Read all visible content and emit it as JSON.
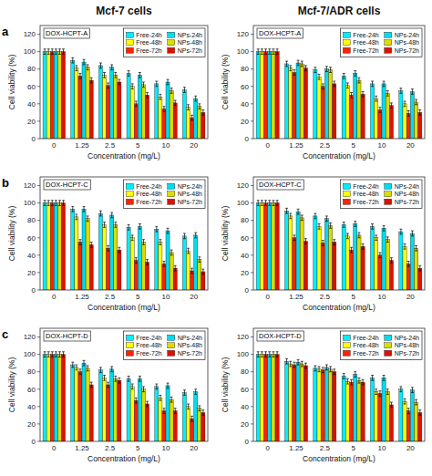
{
  "chart_data": [
    {
      "type": "bar",
      "title": "Mcf-7 cells",
      "annotations": [
        "a",
        "DOX-HCPT-A"
      ],
      "x_label": "Concentration (mg/L)",
      "y_label": "Cell viability (%)",
      "categories": [
        "0",
        "1.25",
        "2.5",
        "5",
        "10",
        "20"
      ],
      "ylim": [
        0,
        130
      ],
      "yticks": [
        0,
        20,
        40,
        60,
        80,
        100,
        120
      ],
      "grid": false,
      "legend": "upper right",
      "series": [
        {
          "name": "Free-24h",
          "color": "#00EEFF",
          "values": [
            100,
            90,
            84,
            75,
            63,
            56
          ],
          "error": [
            3,
            3,
            3,
            3,
            3,
            3
          ]
        },
        {
          "name": "Free-48h",
          "color": "#FFFF00",
          "values": [
            100,
            81,
            73,
            60,
            48,
            36
          ],
          "error": [
            3,
            3,
            3,
            3,
            3,
            3
          ]
        },
        {
          "name": "Free-72h",
          "color": "#FF2200",
          "values": [
            100,
            72,
            61,
            40,
            34,
            24
          ],
          "error": [
            3,
            3,
            3,
            3,
            3,
            3
          ]
        },
        {
          "name": "NPs-24h",
          "color": "#00DDEE",
          "values": [
            100,
            88,
            82,
            73,
            65,
            46
          ],
          "error": [
            3,
            3,
            3,
            3,
            3,
            3
          ]
        },
        {
          "name": "NPs-48h",
          "color": "#DDDD00",
          "values": [
            100,
            82,
            73,
            62,
            55,
            37
          ],
          "error": [
            3,
            3,
            3,
            3,
            3,
            3
          ]
        },
        {
          "name": "NPs-72h",
          "color": "#DD1100",
          "values": [
            100,
            67,
            65,
            50,
            41,
            30
          ],
          "error": [
            3,
            3,
            3,
            3,
            3,
            3
          ]
        }
      ]
    },
    {
      "type": "bar",
      "title": "Mcf-7/ADR cells",
      "annotations": [
        "DOX-HCPT-A"
      ],
      "x_label": "Concentration (mg/L)",
      "y_label": "Cell viability (%)",
      "categories": [
        "0",
        "1.25",
        "2.5",
        "5",
        "10",
        "20"
      ],
      "ylim": [
        0,
        130
      ],
      "yticks": [
        0,
        20,
        40,
        60,
        80,
        100,
        120
      ],
      "grid": false,
      "legend": "upper right",
      "series": [
        {
          "name": "Free-24h",
          "color": "#00EEFF",
          "values": [
            100,
            86,
            79,
            72,
            63,
            55
          ],
          "error": [
            3,
            3,
            3,
            3,
            3,
            3
          ]
        },
        {
          "name": "Free-48h",
          "color": "#FFFF00",
          "values": [
            100,
            81,
            71,
            61,
            46,
            40
          ],
          "error": [
            3,
            3,
            3,
            3,
            3,
            3
          ]
        },
        {
          "name": "Free-72h",
          "color": "#FF2200",
          "values": [
            100,
            76,
            60,
            50,
            33,
            29
          ],
          "error": [
            3,
            3,
            3,
            3,
            3,
            3
          ]
        },
        {
          "name": "NPs-24h",
          "color": "#00DDEE",
          "values": [
            100,
            87,
            80,
            75,
            63,
            54
          ],
          "error": [
            3,
            3,
            3,
            3,
            3,
            3
          ]
        },
        {
          "name": "NPs-48h",
          "color": "#DDDD00",
          "values": [
            100,
            86,
            79,
            67,
            52,
            42
          ],
          "error": [
            3,
            3,
            3,
            3,
            3,
            3
          ]
        },
        {
          "name": "NPs-72h",
          "color": "#DD1100",
          "values": [
            100,
            81,
            63,
            51,
            38,
            30
          ],
          "error": [
            3,
            3,
            3,
            3,
            3,
            3
          ]
        }
      ]
    },
    {
      "type": "bar",
      "annotations": [
        "b",
        "DOX-HCPT-C"
      ],
      "x_label": "Concentration (mg/L)",
      "y_label": "Cell viability (%)",
      "categories": [
        "0",
        "1.25",
        "2.5",
        "5",
        "10",
        "20"
      ],
      "ylim": [
        0,
        130
      ],
      "yticks": [
        0,
        20,
        40,
        60,
        80,
        100,
        120
      ],
      "grid": false,
      "legend": "upper right",
      "series": [
        {
          "name": "Free-24h",
          "color": "#00EEFF",
          "values": [
            100,
            93,
            88,
            72,
            70,
            62
          ],
          "error": [
            3,
            3,
            3,
            3,
            3,
            3
          ]
        },
        {
          "name": "Free-48h",
          "color": "#FFFF00",
          "values": [
            100,
            84,
            75,
            60,
            55,
            45
          ],
          "error": [
            3,
            3,
            3,
            3,
            3,
            3
          ]
        },
        {
          "name": "Free-72h",
          "color": "#FF2200",
          "values": [
            100,
            55,
            48,
            34,
            30,
            22
          ],
          "error": [
            3,
            3,
            3,
            3,
            3,
            3
          ]
        },
        {
          "name": "NPs-24h",
          "color": "#00DDEE",
          "values": [
            100,
            93,
            86,
            73,
            68,
            63
          ],
          "error": [
            3,
            3,
            3,
            3,
            3,
            3
          ]
        },
        {
          "name": "NPs-48h",
          "color": "#DDDD00",
          "values": [
            100,
            82,
            75,
            55,
            43,
            35
          ],
          "error": [
            3,
            3,
            3,
            3,
            3,
            3
          ]
        },
        {
          "name": "NPs-72h",
          "color": "#DD1100",
          "values": [
            100,
            52,
            46,
            32,
            25,
            21
          ],
          "error": [
            3,
            3,
            3,
            3,
            3,
            3
          ]
        }
      ]
    },
    {
      "type": "bar",
      "annotations": [
        "DOX-HCPT-C"
      ],
      "x_label": "Concentration (mg/L)",
      "y_label": "Cell viability (%)",
      "categories": [
        "0",
        "1.25",
        "2.5",
        "5",
        "10",
        "20"
      ],
      "ylim": [
        0,
        130
      ],
      "yticks": [
        0,
        20,
        40,
        60,
        80,
        100,
        120
      ],
      "grid": false,
      "legend": "upper right",
      "series": [
        {
          "name": "Free-24h",
          "color": "#00EEFF",
          "values": [
            100,
            91,
            85,
            75,
            73,
            67
          ],
          "error": [
            3,
            3,
            3,
            3,
            3,
            3
          ]
        },
        {
          "name": "Free-48h",
          "color": "#FFFF00",
          "values": [
            100,
            85,
            73,
            62,
            60,
            50
          ],
          "error": [
            3,
            3,
            3,
            3,
            3,
            3
          ]
        },
        {
          "name": "Free-72h",
          "color": "#FF2200",
          "values": [
            100,
            60,
            54,
            46,
            40,
            30
          ],
          "error": [
            3,
            3,
            3,
            3,
            3,
            3
          ]
        },
        {
          "name": "NPs-24h",
          "color": "#00DDEE",
          "values": [
            100,
            90,
            82,
            76,
            71,
            65
          ],
          "error": [
            3,
            3,
            3,
            3,
            3,
            3
          ]
        },
        {
          "name": "NPs-48h",
          "color": "#DDDD00",
          "values": [
            100,
            83,
            74,
            63,
            58,
            48
          ],
          "error": [
            3,
            3,
            3,
            3,
            3,
            3
          ]
        },
        {
          "name": "NPs-72h",
          "color": "#DD1100",
          "values": [
            100,
            56,
            55,
            50,
            34,
            25
          ],
          "error": [
            3,
            3,
            3,
            3,
            3,
            3
          ]
        }
      ]
    },
    {
      "type": "bar",
      "annotations": [
        "c",
        "DOX-HCPT-D"
      ],
      "x_label": "Concentration (mg/L)",
      "y_label": "Cell viability (%)",
      "categories": [
        "0",
        "1.25",
        "2.5",
        "5",
        "10",
        "20"
      ],
      "ylim": [
        0,
        130
      ],
      "yticks": [
        0,
        20,
        40,
        60,
        80,
        100,
        120
      ],
      "grid": false,
      "legend": "upper right",
      "series": [
        {
          "name": "Free-24h",
          "color": "#00EEFF",
          "values": [
            100,
            88,
            82,
            72,
            63,
            56
          ],
          "error": [
            3,
            3,
            3,
            3,
            3,
            3
          ]
        },
        {
          "name": "Free-48h",
          "color": "#FFFF00",
          "values": [
            100,
            85,
            73,
            63,
            50,
            40
          ],
          "error": [
            3,
            3,
            3,
            3,
            3,
            3
          ]
        },
        {
          "name": "Free-72h",
          "color": "#FF2200",
          "values": [
            100,
            80,
            65,
            47,
            35,
            26
          ],
          "error": [
            3,
            3,
            3,
            3,
            3,
            3
          ]
        },
        {
          "name": "NPs-24h",
          "color": "#00DDEE",
          "values": [
            100,
            90,
            83,
            72,
            64,
            57
          ],
          "error": [
            3,
            3,
            3,
            3,
            3,
            3
          ]
        },
        {
          "name": "NPs-48h",
          "color": "#DDDD00",
          "values": [
            100,
            84,
            72,
            60,
            48,
            38
          ],
          "error": [
            3,
            3,
            3,
            3,
            3,
            3
          ]
        },
        {
          "name": "NPs-72h",
          "color": "#DD1100",
          "values": [
            100,
            65,
            70,
            43,
            35,
            33
          ],
          "error": [
            3,
            3,
            3,
            3,
            3,
            3
          ]
        }
      ]
    },
    {
      "type": "bar",
      "annotations": [
        "DOX-HCPT-D"
      ],
      "x_label": "Concentration (mg/L)",
      "y_label": "Cell viability (%)",
      "categories": [
        "0",
        "1.25",
        "2.5",
        "5",
        "10",
        "20"
      ],
      "ylim": [
        0,
        130
      ],
      "yticks": [
        0,
        20,
        40,
        60,
        80,
        100,
        120
      ],
      "grid": false,
      "legend": "upper right",
      "series": [
        {
          "name": "Free-24h",
          "color": "#00EEFF",
          "values": [
            100,
            92,
            84,
            75,
            73,
            60
          ],
          "error": [
            3,
            3,
            3,
            3,
            3,
            3
          ]
        },
        {
          "name": "Free-48h",
          "color": "#FFFF00",
          "values": [
            100,
            89,
            83,
            69,
            57,
            46
          ],
          "error": [
            3,
            3,
            3,
            3,
            3,
            3
          ]
        },
        {
          "name": "Free-72h",
          "color": "#FF2200",
          "values": [
            100,
            88,
            82,
            68,
            55,
            35
          ],
          "error": [
            3,
            3,
            3,
            3,
            3,
            3
          ]
        },
        {
          "name": "NPs-24h",
          "color": "#00DDEE",
          "values": [
            100,
            91,
            85,
            77,
            73,
            59
          ],
          "error": [
            3,
            3,
            3,
            3,
            3,
            3
          ]
        },
        {
          "name": "NPs-48h",
          "color": "#DDDD00",
          "values": [
            100,
            89,
            83,
            70,
            57,
            45
          ],
          "error": [
            3,
            3,
            3,
            3,
            3,
            3
          ]
        },
        {
          "name": "NPs-72h",
          "color": "#DD1100",
          "values": [
            100,
            87,
            80,
            68,
            42,
            33
          ],
          "error": [
            3,
            3,
            3,
            3,
            3,
            3
          ]
        }
      ]
    }
  ]
}
